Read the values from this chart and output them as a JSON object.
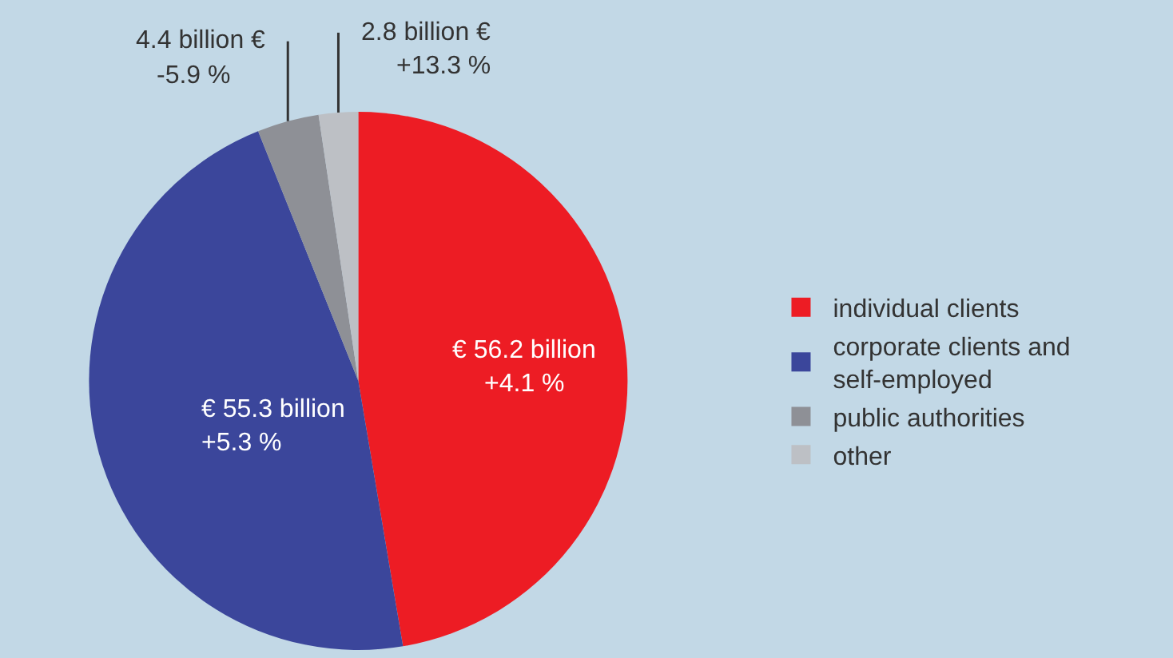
{
  "chart_data": {
    "type": "pie",
    "categories": [
      "individual clients",
      "corporate clients and self-employed",
      "public authorities",
      "other"
    ],
    "values": [
      56.2,
      55.3,
      4.4,
      2.8
    ],
    "colors": [
      "#ed1c24",
      "#3b469b",
      "#8e9096",
      "#bdc0c5"
    ],
    "value_labels": [
      "€ 56.2 billion",
      "€ 55.3 billion",
      "4.4 billion €",
      "2.8 billion €"
    ],
    "annotations": [
      "+4.1 %",
      "+5.3 %",
      "-5.9 %",
      "+13.3 %"
    ],
    "legend": "right"
  }
}
